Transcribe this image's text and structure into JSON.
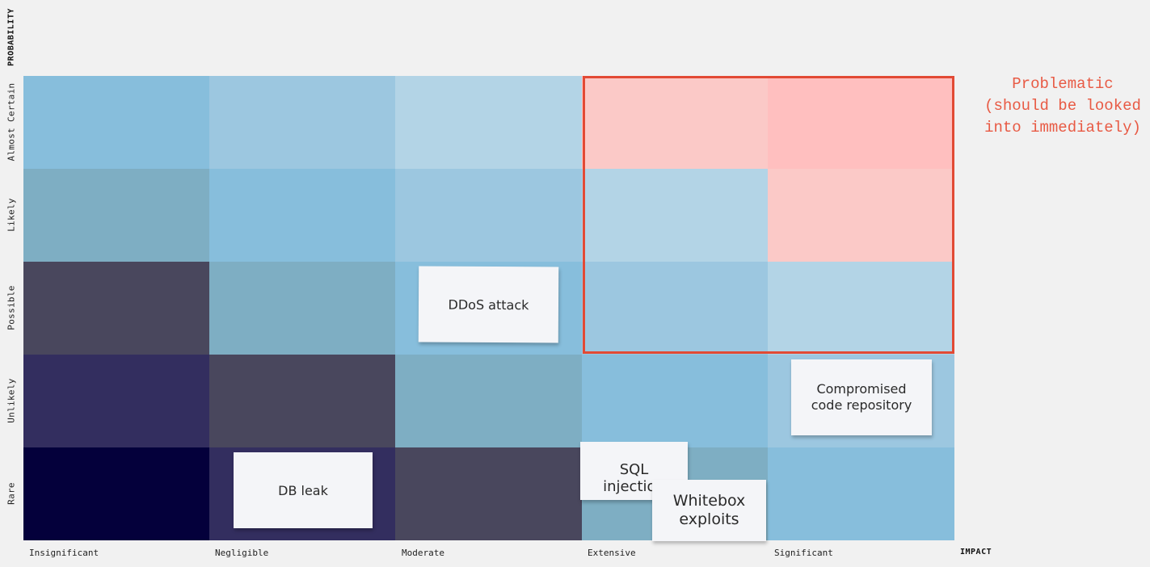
{
  "axes": {
    "y_title": "PROBABILITY",
    "x_title": "IMPACT",
    "y_labels": [
      "Almost Certain",
      "Likely",
      "Possible",
      "Unlikely",
      "Rare"
    ],
    "x_labels": [
      "Insignificant",
      "Negligible",
      "Moderate",
      "Extensive",
      "Significant"
    ]
  },
  "grid_colors": [
    [
      "#87bedc",
      "#9cc7e0",
      "#b3d4e6",
      "#fbc9c7",
      "#ffbfbf"
    ],
    [
      "#7eaec3",
      "#87bedc",
      "#9cc7e0",
      "#b3d4e6",
      "#fbc9c7"
    ],
    [
      "#49475d",
      "#7eaec3",
      "#87bedc",
      "#9cc7e0",
      "#b3d4e6"
    ],
    [
      "#332e5f",
      "#49475d",
      "#7eaec3",
      "#87bedc",
      "#9cc7e0"
    ],
    [
      "#04003b",
      "#332e5f",
      "#49475d",
      "#7eaec3",
      "#87bedc"
    ]
  ],
  "highlight": {
    "label_lines": [
      "Problematic",
      "(should be looked",
      "into immediately)"
    ],
    "color": "#e24a35"
  },
  "stickies": [
    {
      "name": "sticky-ddos-attack",
      "text": "DDoS attack"
    },
    {
      "name": "sticky-compromised-code-repository",
      "text": "Compromised code repository"
    },
    {
      "name": "sticky-db-leak",
      "text": "DB leak"
    },
    {
      "name": "sticky-sql-injection",
      "text": "SQL injection"
    },
    {
      "name": "sticky-whitebox-exploits",
      "text": "Whitebox exploits"
    }
  ]
}
